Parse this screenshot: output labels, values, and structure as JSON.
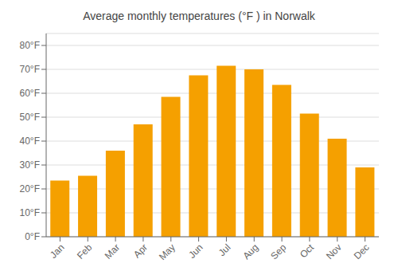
{
  "chart_data": {
    "type": "bar",
    "title": "Average monthly temperatures (°F ) in Norwalk",
    "categories": [
      "Jan",
      "Feb",
      "Mar",
      "Apr",
      "May",
      "Jun",
      "Jul",
      "Aug",
      "Sep",
      "Oct",
      "Nov",
      "Dec"
    ],
    "values": [
      23.5,
      25.5,
      36,
      47,
      58.5,
      67.5,
      71.5,
      70,
      63.5,
      51.5,
      41,
      29
    ],
    "color": "#F5A000",
    "ylim": [
      0,
      85
    ],
    "yticks": [
      {
        "value": 0,
        "label": "0°F"
      },
      {
        "value": 10,
        "label": "10°F"
      },
      {
        "value": 20,
        "label": "20°F"
      },
      {
        "value": 30,
        "label": "30°F"
      },
      {
        "value": 40,
        "label": "40°F"
      },
      {
        "value": 50,
        "label": "50°F"
      },
      {
        "value": 60,
        "label": "60°F"
      },
      {
        "value": 70,
        "label": "70°F"
      },
      {
        "value": 80,
        "label": "80°F"
      }
    ],
    "grid": true
  }
}
